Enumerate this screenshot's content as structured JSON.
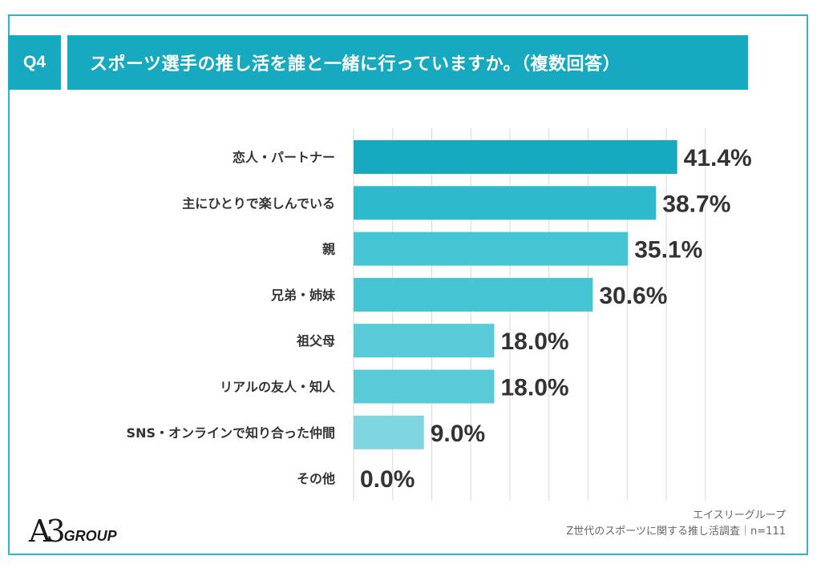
{
  "header": {
    "badge": "Q4",
    "title": "スポーツ選手の推し活を誰と一緒に行っていますか。（複数回答）"
  },
  "chart_data": {
    "type": "bar",
    "orientation": "horizontal",
    "categories": [
      "恋人・パートナー",
      "主にひとりで楽しんでいる",
      "親",
      "兄弟・姉妹",
      "祖父母",
      "リアルの友人・知人",
      "SNS・オンラインで知り合った仲間",
      "その他"
    ],
    "values": [
      41.4,
      38.7,
      35.1,
      30.6,
      18.0,
      18.0,
      9.0,
      0.0
    ],
    "value_labels": [
      "41.4%",
      "38.7%",
      "35.1%",
      "30.6%",
      "18.0%",
      "18.0%",
      "9.0%",
      "0.0%"
    ],
    "xlim": [
      0,
      45
    ],
    "grid": true,
    "colors": [
      "#16a9bf",
      "#2dbacc",
      "#45c4d3",
      "#45c4d3",
      "#58cad8",
      "#58cad8",
      "#7fd6e1",
      "#b3e6ed"
    ]
  },
  "logo": {
    "mark": "A3",
    "text": "GROUP"
  },
  "footer": {
    "line1": "エイスリーグループ",
    "line2": "Z世代のスポーツに関する推し活調査｜n=111"
  }
}
